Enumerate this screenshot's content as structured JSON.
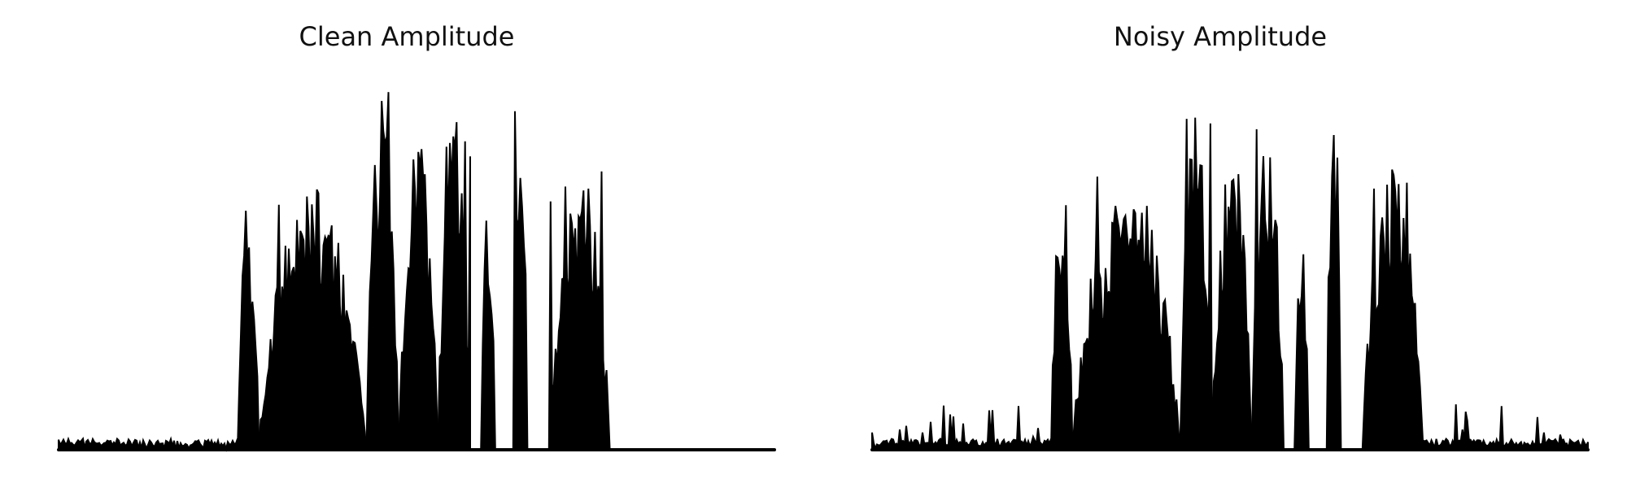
{
  "chart_data": [
    {
      "type": "area",
      "title": "Clean Amplitude",
      "xlabel": "",
      "ylabel": "",
      "axes": "off",
      "grid": false,
      "ylim": [
        0,
        1
      ],
      "color": "#000000",
      "segments": [
        {
          "start": 0.0,
          "end": 0.25,
          "peak": 0.01
        },
        {
          "start": 0.25,
          "end": 0.28,
          "peak": 0.68
        },
        {
          "start": 0.28,
          "end": 0.43,
          "peak": 0.71
        },
        {
          "start": 0.43,
          "end": 0.475,
          "peak": 1.0
        },
        {
          "start": 0.475,
          "end": 0.53,
          "peak": 0.86
        },
        {
          "start": 0.53,
          "end": 0.575,
          "peak": 0.9
        },
        {
          "start": 0.59,
          "end": 0.61,
          "peak": 0.66
        },
        {
          "start": 0.635,
          "end": 0.655,
          "peak": 0.98
        },
        {
          "start": 0.685,
          "end": 0.77,
          "peak": 0.76
        }
      ]
    },
    {
      "type": "area",
      "title": "Noisy Amplitude",
      "xlabel": "",
      "ylabel": "",
      "axes": "off",
      "grid": false,
      "ylim": [
        0,
        1
      ],
      "color": "#000000",
      "segments": [
        {
          "start": 0.0,
          "end": 0.25,
          "peak": 0.12
        },
        {
          "start": 0.25,
          "end": 0.28,
          "peak": 0.72
        },
        {
          "start": 0.28,
          "end": 0.43,
          "peak": 0.74
        },
        {
          "start": 0.43,
          "end": 0.475,
          "peak": 1.0
        },
        {
          "start": 0.475,
          "end": 0.53,
          "peak": 0.87
        },
        {
          "start": 0.53,
          "end": 0.575,
          "peak": 0.91
        },
        {
          "start": 0.59,
          "end": 0.61,
          "peak": 0.67
        },
        {
          "start": 0.635,
          "end": 0.655,
          "peak": 1.0
        },
        {
          "start": 0.685,
          "end": 0.77,
          "peak": 0.77
        },
        {
          "start": 0.77,
          "end": 1.0,
          "peak": 0.13
        }
      ]
    }
  ]
}
